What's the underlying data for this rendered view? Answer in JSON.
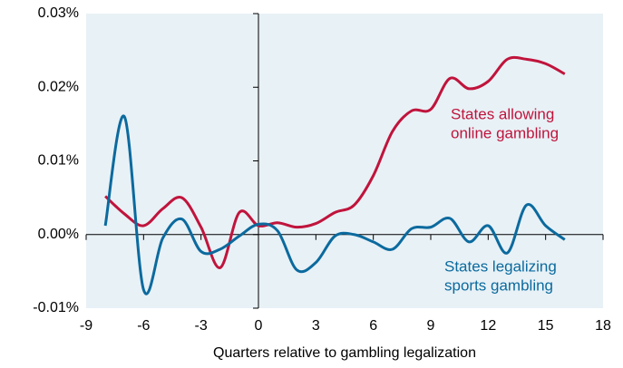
{
  "chart_data": {
    "type": "line",
    "x_label": "Quarters relative to gambling legalization",
    "x": [
      -8,
      -7,
      -6,
      -5,
      -4,
      -3,
      -2,
      -1,
      0,
      1,
      2,
      3,
      4,
      5,
      6,
      7,
      8,
      9,
      10,
      11,
      12,
      13,
      14,
      15,
      16
    ],
    "series": [
      {
        "name_lines": [
          "States allowing",
          "online gambling"
        ],
        "color": "#c0143c",
        "values": [
          0.0052,
          0.0028,
          0.0012,
          0.0035,
          0.005,
          0.001,
          -0.0045,
          0.003,
          0.0012,
          0.0016,
          0.001,
          0.0015,
          0.003,
          0.004,
          0.008,
          0.014,
          0.0168,
          0.017,
          0.0212,
          0.0198,
          0.0208,
          0.0238,
          0.0238,
          0.0232,
          0.0218
        ]
      },
      {
        "name_lines": [
          "States legalizing",
          "sports gambling"
        ],
        "color": "#0b6a9e",
        "values": [
          0.0012,
          0.016,
          -0.0075,
          -0.0005,
          0.0021,
          -0.0023,
          -0.002,
          -0.0002,
          0.0014,
          0.0005,
          -0.0048,
          -0.0038,
          -0.0002,
          0.0,
          -0.001,
          -0.002,
          0.0008,
          0.001,
          0.0022,
          -0.001,
          0.0012,
          -0.0025,
          0.004,
          0.0012,
          -0.0007
        ]
      }
    ],
    "xlim": [
      -9,
      18
    ],
    "xticks": [
      -9,
      -6,
      -3,
      0,
      3,
      6,
      9,
      12,
      15,
      18
    ],
    "ylim": [
      -0.01,
      0.03
    ],
    "yticks": [
      {
        "value": -0.01,
        "label": "-0.01%"
      },
      {
        "value": 0,
        "label": "0.00%"
      },
      {
        "value": 0.01,
        "label": "0.01%"
      },
      {
        "value": 0.02,
        "label": "0.02%"
      },
      {
        "value": 0.03,
        "label": "0.03%"
      }
    ],
    "background": "#e8f1f6"
  }
}
